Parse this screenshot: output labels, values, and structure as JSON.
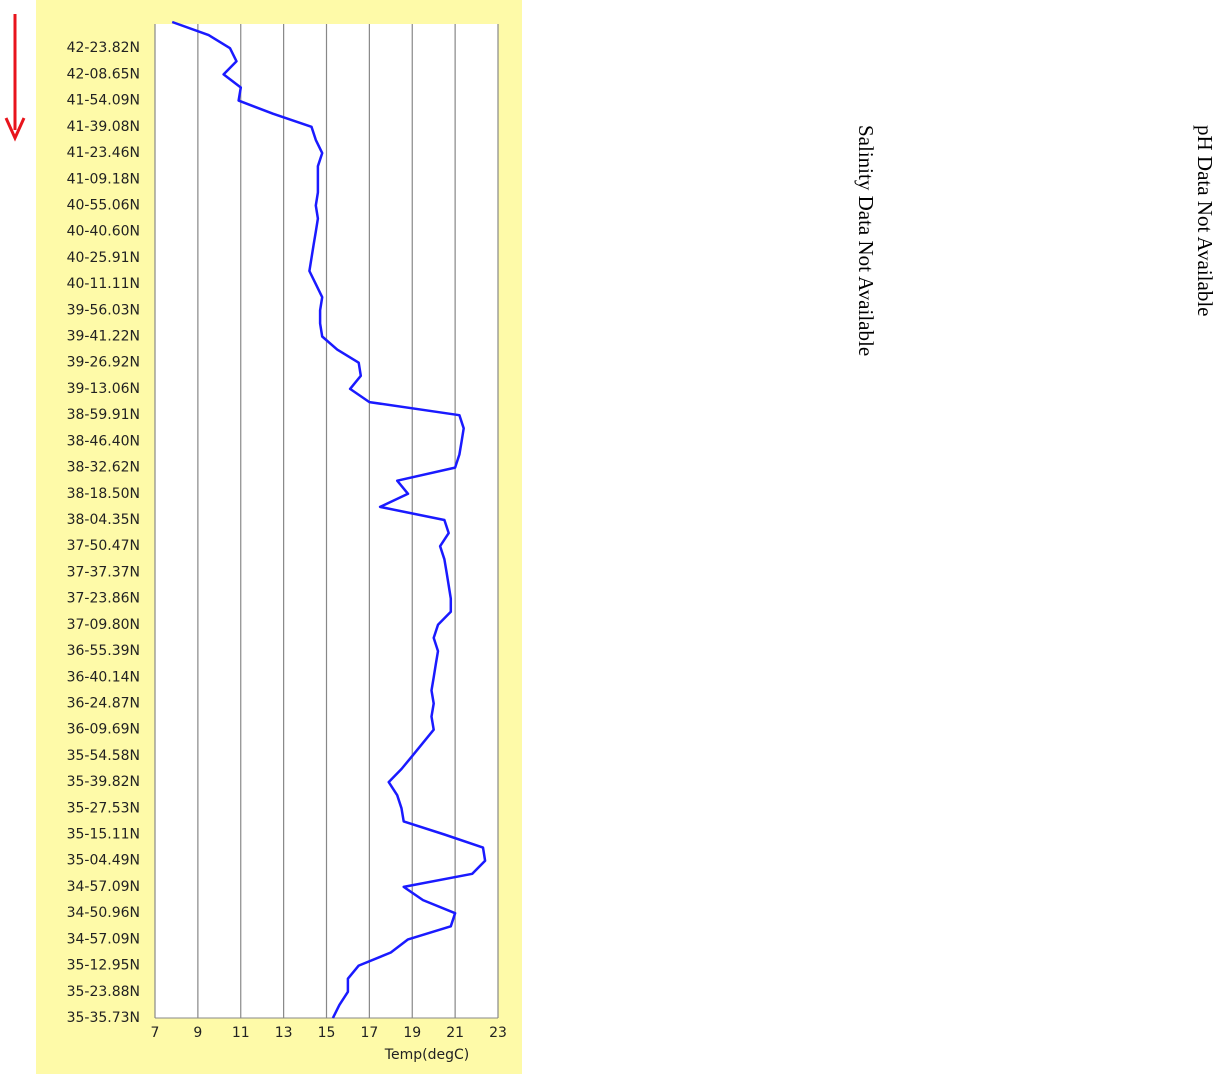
{
  "chart_data": {
    "type": "line",
    "x_label": "Temp(degC)",
    "categories": [
      null,
      null,
      "42-23.82N",
      null,
      "42-08.65N",
      null,
      "41-54.09N",
      null,
      "41-39.08N",
      null,
      "41-23.46N",
      null,
      "41-09.18N",
      null,
      "40-55.06N",
      null,
      "40-40.60N",
      null,
      "40-25.91N",
      null,
      "40-11.11N",
      null,
      "39-56.03N",
      null,
      "39-41.22N",
      null,
      "39-26.92N",
      null,
      "39-13.06N",
      null,
      "38-59.91N",
      null,
      "38-46.40N",
      null,
      "38-32.62N",
      null,
      "38-18.50N",
      null,
      "38-04.35N",
      null,
      "37-50.47N",
      null,
      "37-37.37N",
      null,
      "37-23.86N",
      null,
      "37-09.80N",
      null,
      "36-55.39N",
      null,
      "36-40.14N",
      null,
      "36-24.87N",
      null,
      "36-09.69N",
      null,
      "35-54.58N",
      null,
      "35-39.82N",
      null,
      "35-27.53N",
      null,
      "35-15.11N",
      null,
      "35-04.49N",
      null,
      "34-57.09N",
      null,
      "34-50.96N",
      null,
      "34-57.09N",
      null,
      "35-12.95N",
      null,
      "35-23.88N",
      null,
      "35-35.73N"
    ],
    "values": [
      7.8,
      9.5,
      10.5,
      10.8,
      10.2,
      11.0,
      10.9,
      12.5,
      14.3,
      14.5,
      14.8,
      14.6,
      14.6,
      14.6,
      14.5,
      14.6,
      14.5,
      14.4,
      14.3,
      14.2,
      14.5,
      14.8,
      14.7,
      14.7,
      14.8,
      15.5,
      16.5,
      16.6,
      16.1,
      17.0,
      21.2,
      21.4,
      21.3,
      21.2,
      21.0,
      18.3,
      18.8,
      17.5,
      20.5,
      20.7,
      20.3,
      20.5,
      20.6,
      20.7,
      20.8,
      20.8,
      20.2,
      20.0,
      20.2,
      20.1,
      20.0,
      19.9,
      20.0,
      19.9,
      20.0,
      19.5,
      19.0,
      18.5,
      17.9,
      18.3,
      18.5,
      18.6,
      20.5,
      22.3,
      22.4,
      21.8,
      18.6,
      19.5,
      21.0,
      20.8,
      18.8,
      18.0,
      16.5,
      16.0,
      16.0,
      15.6,
      15.3
    ],
    "color": "#1a1aff",
    "xlim": [
      7,
      23
    ],
    "xticks": [
      7,
      9,
      11,
      13,
      15,
      17,
      19,
      21,
      23
    ],
    "grid": true
  },
  "panels": [
    {
      "text": "Salinity Data Not Available"
    },
    {
      "text": "pH Data Not Available"
    }
  ]
}
